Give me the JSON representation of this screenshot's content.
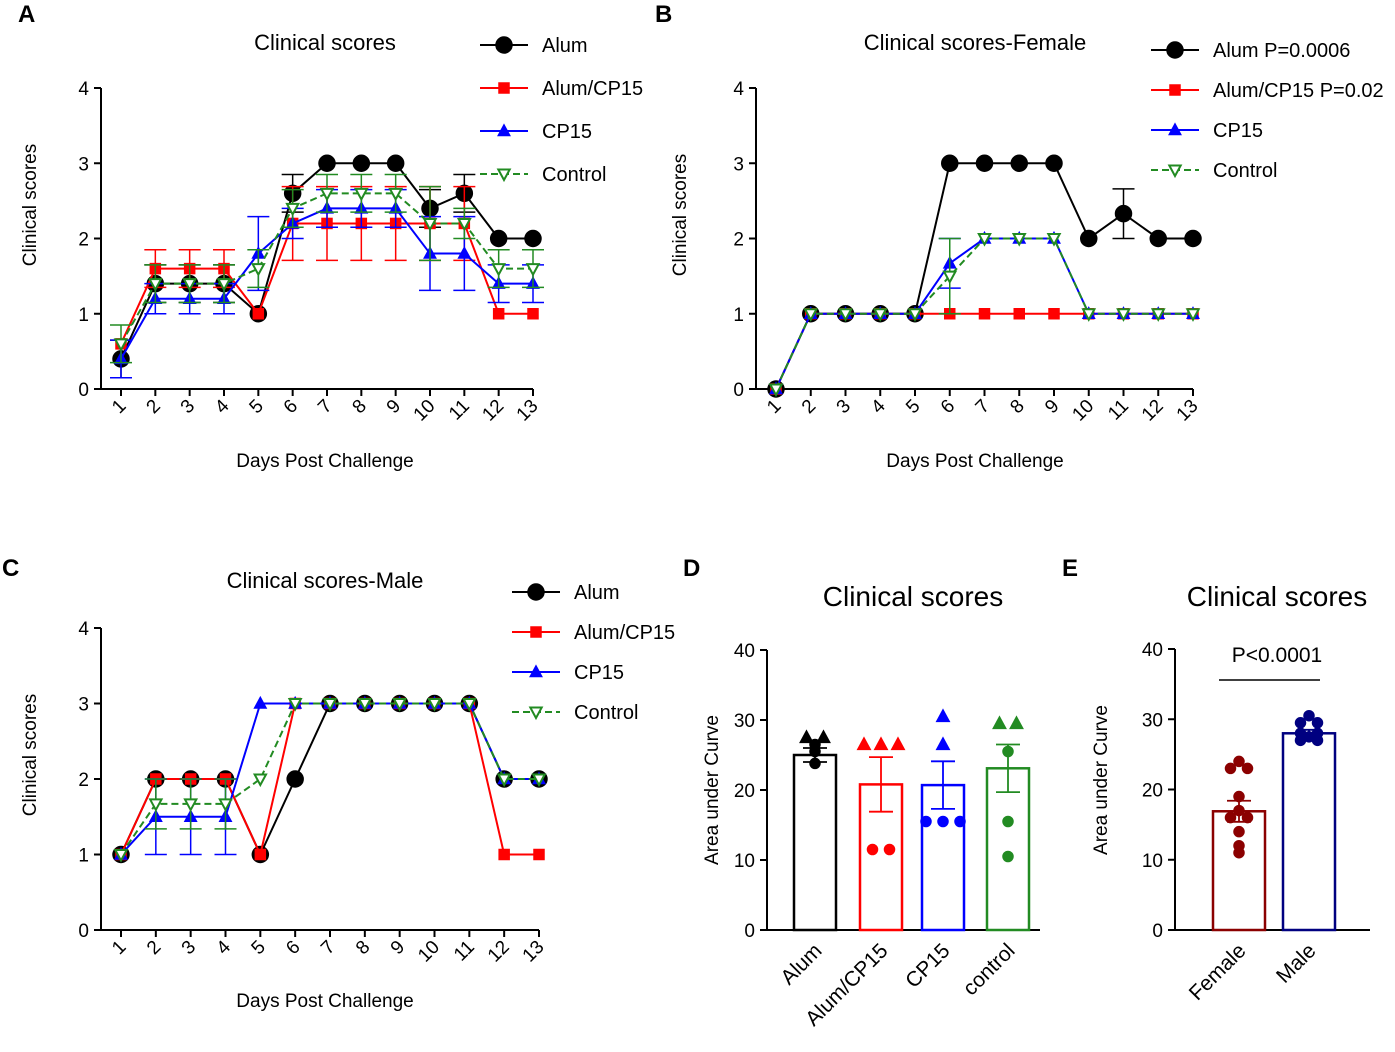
{
  "chart_data": [
    {
      "id": "A",
      "panel_label": "A",
      "type": "line",
      "title": "Clinical scores",
      "xlabel": "Days Post Challenge",
      "ylabel": "Clinical scores",
      "ylim": [
        0,
        4
      ],
      "yticks": [
        "0",
        "1",
        "2",
        "3",
        "4"
      ],
      "categories": [
        "1",
        "2",
        "3",
        "4",
        "5",
        "6",
        "7",
        "8",
        "9",
        "10",
        "11",
        "12",
        "13"
      ],
      "series": [
        {
          "name": "Alum",
          "legend": "Alum",
          "color": "#000000",
          "marker": "circle",
          "dash": false,
          "values": [
            0.4,
            1.4,
            1.4,
            1.4,
            1.0,
            2.6,
            3.0,
            3.0,
            3.0,
            2.4,
            2.6,
            2.0,
            2.0
          ],
          "errors": [
            0.25,
            0.25,
            0.25,
            0.25,
            0,
            0.25,
            0,
            0,
            0,
            0.25,
            0.25,
            0,
            0
          ]
        },
        {
          "name": "Alum/CP15",
          "legend": "Alum/CP15",
          "color": "#ff0000",
          "marker": "square",
          "dash": false,
          "values": [
            0.6,
            1.6,
            1.6,
            1.6,
            1.0,
            2.2,
            2.2,
            2.2,
            2.2,
            2.2,
            2.2,
            1.0,
            1.0
          ],
          "errors": [
            0,
            0.25,
            0.25,
            0.25,
            0,
            0.49,
            0.49,
            0.49,
            0.49,
            0.49,
            0.49,
            0,
            0
          ]
        },
        {
          "name": "CP15",
          "legend": "CP15",
          "color": "#0000ff",
          "marker": "triangle",
          "dash": false,
          "values": [
            0.4,
            1.2,
            1.2,
            1.2,
            1.8,
            2.2,
            2.4,
            2.4,
            2.4,
            1.8,
            1.8,
            1.4,
            1.4
          ],
          "errors": [
            0.25,
            0.2,
            0.2,
            0.2,
            0.49,
            0.2,
            0.25,
            0.25,
            0.25,
            0.49,
            0.49,
            0.25,
            0.25
          ]
        },
        {
          "name": "Control",
          "legend": "Control",
          "color": "#228b22",
          "marker": "triangle-down",
          "dash": true,
          "values": [
            0.6,
            1.4,
            1.4,
            1.4,
            1.6,
            2.4,
            2.6,
            2.6,
            2.6,
            2.2,
            2.2,
            1.6,
            1.6
          ],
          "errors": [
            0.25,
            0.25,
            0.25,
            0.25,
            0.25,
            0.25,
            0.25,
            0.25,
            0.25,
            0.49,
            0.2,
            0.25,
            0.25
          ]
        }
      ]
    },
    {
      "id": "B",
      "panel_label": "B",
      "type": "line",
      "title": "Clinical scores-Female",
      "xlabel": "Days Post Challenge",
      "ylabel": "Clinical scores",
      "ylim": [
        0,
        4
      ],
      "yticks": [
        "0",
        "1",
        "2",
        "3",
        "4"
      ],
      "categories": [
        "1",
        "2",
        "3",
        "4",
        "5",
        "6",
        "7",
        "8",
        "9",
        "10",
        "11",
        "12",
        "13"
      ],
      "series": [
        {
          "name": "Alum",
          "legend": "Alum P=0.0006",
          "color": "#000000",
          "marker": "circle",
          "dash": false,
          "values": [
            0,
            1,
            1,
            1,
            1,
            3,
            3,
            3,
            3,
            2,
            2.33,
            2,
            2
          ],
          "errors": [
            0,
            0,
            0,
            0,
            0,
            0,
            0,
            0,
            0,
            0,
            0.33,
            0,
            0
          ]
        },
        {
          "name": "Alum/CP15",
          "legend": "Alum/CP15  P=0.02",
          "color": "#ff0000",
          "marker": "square",
          "dash": false,
          "values": [
            0,
            1,
            1,
            1,
            1,
            1,
            1,
            1,
            1,
            1,
            1,
            1,
            1
          ],
          "errors": [
            0,
            0,
            0,
            0,
            0,
            0,
            0,
            0,
            0,
            0,
            0,
            0,
            0
          ]
        },
        {
          "name": "CP15",
          "legend": "CP15",
          "color": "#0000ff",
          "marker": "triangle",
          "dash": false,
          "values": [
            0,
            1,
            1,
            1,
            1,
            1.67,
            2,
            2,
            2,
            1,
            1,
            1,
            1
          ],
          "errors": [
            0,
            0,
            0,
            0,
            0,
            0.33,
            0,
            0,
            0,
            0,
            0,
            0,
            0
          ]
        },
        {
          "name": "Control",
          "legend": "Control",
          "color": "#228b22",
          "marker": "triangle-down",
          "dash": true,
          "values": [
            0,
            1,
            1,
            1,
            1,
            1.5,
            2,
            2,
            2,
            1,
            1,
            1,
            1
          ],
          "errors": [
            0,
            0,
            0,
            0,
            0,
            0.5,
            0,
            0,
            0,
            0,
            0,
            0,
            0
          ]
        }
      ]
    },
    {
      "id": "C",
      "panel_label": "C",
      "type": "line",
      "title": "Clinical scores-Male",
      "xlabel": "Days Post Challenge",
      "ylabel": "Clinical scores",
      "ylim": [
        0,
        4
      ],
      "yticks": [
        "0",
        "1",
        "2",
        "3",
        "4"
      ],
      "categories": [
        "1",
        "2",
        "3",
        "4",
        "5",
        "6",
        "7",
        "8",
        "9",
        "10",
        "11",
        "12",
        "13"
      ],
      "series": [
        {
          "name": "Alum",
          "legend": "Alum",
          "color": "#000000",
          "marker": "circle",
          "dash": false,
          "values": [
            1,
            2,
            2,
            2,
            1,
            2,
            3,
            3,
            3,
            3,
            3,
            2,
            2
          ],
          "errors": [
            0,
            0,
            0,
            0,
            0,
            0,
            0,
            0,
            0,
            0,
            0,
            0,
            0
          ]
        },
        {
          "name": "Alum/CP15",
          "legend": "Alum/CP15",
          "color": "#ff0000",
          "marker": "square",
          "dash": false,
          "values": [
            1,
            2,
            2,
            2,
            1,
            3,
            3,
            3,
            3,
            3,
            3,
            1,
            1
          ],
          "errors": [
            0,
            0,
            0,
            0,
            0,
            0,
            0,
            0,
            0,
            0,
            0,
            0,
            0
          ]
        },
        {
          "name": "CP15",
          "legend": "CP15",
          "color": "#0000ff",
          "marker": "triangle",
          "dash": false,
          "values": [
            1,
            1.5,
            1.5,
            1.5,
            3,
            3,
            3,
            3,
            3,
            3,
            3,
            2,
            2
          ],
          "errors": [
            0,
            0.5,
            0.5,
            0.5,
            0,
            0,
            0,
            0,
            0,
            0,
            0,
            0,
            0
          ]
        },
        {
          "name": "Control",
          "legend": "Control",
          "color": "#228b22",
          "marker": "triangle-down",
          "dash": true,
          "values": [
            1,
            1.67,
            1.67,
            1.67,
            2,
            3,
            3,
            3,
            3,
            3,
            3,
            2,
            2
          ],
          "errors": [
            0,
            0.33,
            0.33,
            0.33,
            0,
            0,
            0,
            0,
            0,
            0,
            0,
            0,
            0
          ]
        }
      ]
    },
    {
      "id": "D",
      "panel_label": "D",
      "type": "bar",
      "title": "Clinical scores",
      "xlabel": "",
      "ylabel": "Area under Curve",
      "ylim": [
        0,
        40
      ],
      "yticks": [
        "0",
        "10",
        "20",
        "30",
        "40"
      ],
      "categories": [
        "Alum",
        "Alum/CP15",
        "CP15",
        "control"
      ],
      "values": [
        25,
        20.8,
        20.7,
        23.1
      ],
      "errors": [
        1.0,
        3.9,
        3.4,
        3.4
      ],
      "colors": [
        "#000000",
        "#ff0000",
        "#0000ff",
        "#228b22"
      ],
      "points": [
        [
          {
            "v": 27.5,
            "m": "triangle"
          },
          {
            "v": 27.5,
            "m": "triangle"
          },
          {
            "v": 26.5,
            "m": "circle"
          },
          {
            "v": 25.5,
            "m": "circle"
          },
          {
            "v": 23.8,
            "m": "circle"
          }
        ],
        [
          {
            "v": 26.5,
            "m": "triangle"
          },
          {
            "v": 26.5,
            "m": "triangle"
          },
          {
            "v": 26.5,
            "m": "triangle"
          },
          {
            "v": 11.5,
            "m": "circle"
          },
          {
            "v": 11.5,
            "m": "circle"
          }
        ],
        [
          {
            "v": 30.5,
            "m": "triangle"
          },
          {
            "v": 26.5,
            "m": "triangle"
          },
          {
            "v": 15.5,
            "m": "circle"
          },
          {
            "v": 15.5,
            "m": "circle"
          },
          {
            "v": 15.5,
            "m": "circle"
          }
        ],
        [
          {
            "v": 29.5,
            "m": "triangle"
          },
          {
            "v": 29.5,
            "m": "triangle"
          },
          {
            "v": 25.5,
            "m": "circle"
          },
          {
            "v": 15.5,
            "m": "circle"
          },
          {
            "v": 10.5,
            "m": "circle"
          }
        ]
      ]
    },
    {
      "id": "E",
      "panel_label": "E",
      "type": "bar",
      "title": "Clinical scores",
      "xlabel": "",
      "ylabel": "Area under Curve",
      "ylim": [
        0,
        40
      ],
      "yticks": [
        "0",
        "10",
        "20",
        "30",
        "40"
      ],
      "categories": [
        "Female",
        "Male"
      ],
      "values": [
        16.9,
        28.0
      ],
      "errors": [
        1.5,
        0.5
      ],
      "colors": [
        "#8b0000",
        "#000080"
      ],
      "annotation": "P<0.0001",
      "points": [
        [
          {
            "v": 24,
            "m": "circle"
          },
          {
            "v": 23,
            "m": "circle"
          },
          {
            "v": 23,
            "m": "circle"
          },
          {
            "v": 19,
            "m": "circle"
          },
          {
            "v": 17,
            "m": "circle"
          },
          {
            "v": 16,
            "m": "circle"
          },
          {
            "v": 16,
            "m": "circle"
          },
          {
            "v": 14,
            "m": "circle"
          },
          {
            "v": 12,
            "m": "circle"
          },
          {
            "v": 11,
            "m": "circle"
          }
        ],
        [
          {
            "v": 30.5,
            "m": "circle"
          },
          {
            "v": 29.5,
            "m": "circle"
          },
          {
            "v": 29.5,
            "m": "circle"
          },
          {
            "v": 28,
            "m": "circle"
          },
          {
            "v": 28,
            "m": "circle"
          },
          {
            "v": 27.5,
            "m": "circle"
          },
          {
            "v": 27,
            "m": "circle"
          },
          {
            "v": 27,
            "m": "circle"
          }
        ]
      ]
    }
  ]
}
